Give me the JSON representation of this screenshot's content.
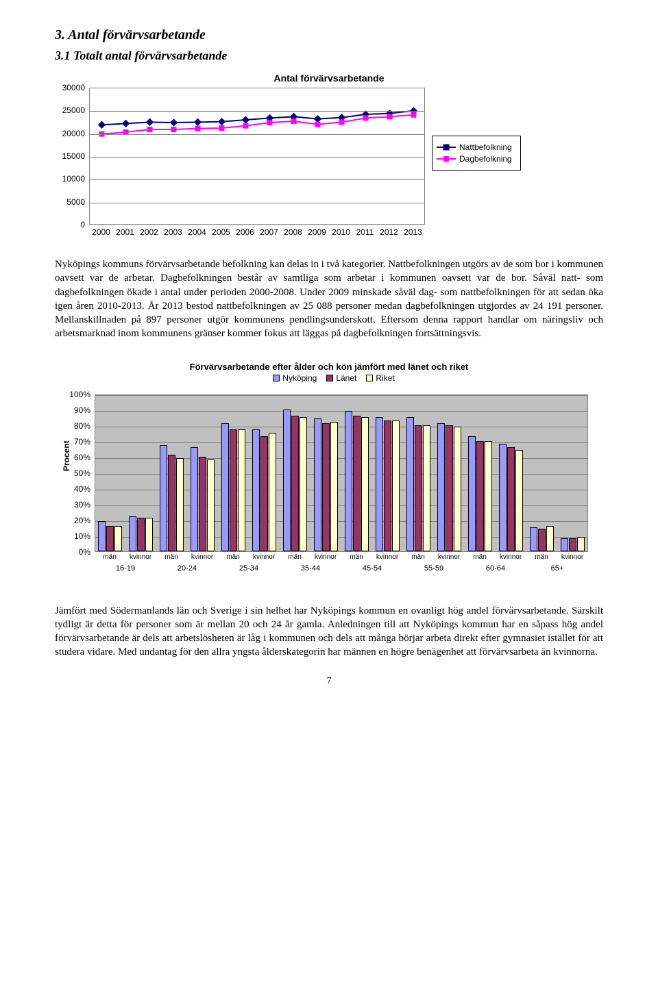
{
  "headings": {
    "section": "3. Antal förvärvsarbetande",
    "subsection": "3.1 Totalt antal förvärvsarbetande"
  },
  "lineChart": {
    "title": "Antal förvärvsarbetande",
    "ymin": 0,
    "ymax": 30000,
    "ystep": 5000,
    "years": [
      "2000",
      "2001",
      "2002",
      "2003",
      "2004",
      "2005",
      "2006",
      "2007",
      "2008",
      "2009",
      "2010",
      "2011",
      "2012",
      "2013"
    ],
    "series": [
      {
        "name": "Nattbefolkning",
        "color": "#000080",
        "marker": "diamond",
        "values": [
          22000,
          22300,
          22600,
          22500,
          22600,
          22700,
          23100,
          23500,
          23800,
          23300,
          23600,
          24300,
          24500,
          25088
        ]
      },
      {
        "name": "Dagbefolkning",
        "color": "#ff00ff",
        "marker": "square",
        "values": [
          20000,
          20400,
          21000,
          21000,
          21200,
          21300,
          21800,
          22500,
          22800,
          22100,
          22600,
          23500,
          23800,
          24191
        ]
      }
    ],
    "plot_bg": "#ffffff",
    "grid_color": "#808080",
    "label_fontsize": 12
  },
  "paragraph1": "Nyköpings kommuns förvärvsarbetande befolkning kan delas in i två kategorier. Nattbefolkningen utgörs av de som bor i kommunen oavsett var de arbetar. Dagbefolkningen består av samtliga som arbetar i kommunen oavsett var de bor. Såväl natt- som dagbefolkningen ökade i antal under perioden 2000-2008. Under 2009 minskade såväl dag- som nattbefolkningen för att sedan öka igen åren 2010-2013. År 2013 bestod nattbefolkningen av 25 088 personer medan dagbefolkningen utgjordes av 24 191 personer. Mellanskillnaden på 897 personer utgör kommunens pendlingsunderskott. Eftersom denna rapport handlar om näringsliv och arbetsmarknad inom kommunens gränser kommer fokus att läggas på dagbefolkningen fortsättningsvis.",
  "barChart": {
    "title": "Förvärvsarbetande efter ålder och kön jämfört med länet och riket",
    "ylabel": "Procent",
    "ymin": 0,
    "ymax": 100,
    "ystep": 10,
    "plot_bg": "#c0c0c0",
    "grid_color": "#808080",
    "series_colors": {
      "Nyköping": "#9999ff",
      "Länet": "#993366",
      "Riket": "#ffffcc"
    },
    "legend": [
      "Nyköping",
      "Länet",
      "Riket"
    ],
    "subLabels": [
      "män",
      "kvinnor"
    ],
    "categories": [
      "16-19",
      "20-24",
      "25-34",
      "35-44",
      "45-54",
      "55-59",
      "60-64",
      "65+"
    ],
    "data": [
      [
        [
          19,
          16,
          16
        ],
        [
          22,
          21,
          21
        ]
      ],
      [
        [
          67,
          61,
          59
        ],
        [
          66,
          60,
          58
        ]
      ],
      [
        [
          81,
          77,
          77
        ],
        [
          77,
          73,
          75
        ]
      ],
      [
        [
          90,
          86,
          85
        ],
        [
          84,
          81,
          82
        ]
      ],
      [
        [
          89,
          86,
          85
        ],
        [
          85,
          83,
          83
        ]
      ],
      [
        [
          85,
          80,
          80
        ],
        [
          81,
          80,
          79
        ]
      ],
      [
        [
          73,
          70,
          70
        ],
        [
          68,
          66,
          64
        ]
      ],
      [
        [
          15,
          14,
          16
        ],
        [
          8,
          8,
          9
        ]
      ]
    ],
    "bar_border": "#000000"
  },
  "paragraph2": "Jämfört med Södermanlands län och Sverige i sin helhet har Nyköpings kommun en ovanligt hög andel förvärvsarbetande. Särskilt tydligt är detta för personer som är mellan 20 och 24 år gamla. Anledningen till att Nyköpings kommun har en såpass hög andel förvärvsarbetande är dels att arbetslösheten är låg i kommunen och dels att många börjar arbeta direkt efter gymnasiet istället för att studera vidare. Med undantag för den allra yngsta ålderskategorin har männen en högre benägenhet att förvärvsarbeta än kvinnorna.",
  "pageNumber": "7"
}
